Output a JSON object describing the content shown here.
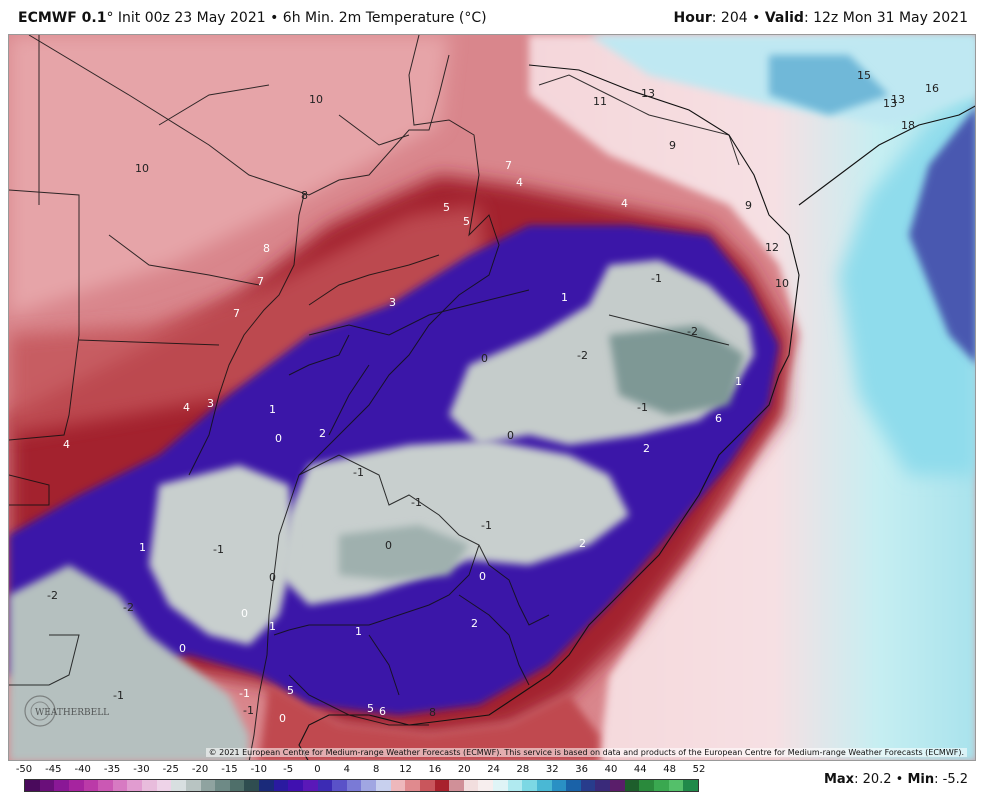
{
  "header": {
    "model": "ECMWF 0.1",
    "init_text": "° Init 00z 23 May 2021 • 6h Min. 2m Temperature (°C)",
    "hour_label": "Hour",
    "hour_value": ": 204 • ",
    "valid_label": "Valid",
    "valid_value": ": 12z Mon 31 May 2021"
  },
  "credit": "© 2021 European Centre for Medium-range Weather Forecasts (ECMWF). This service is based on data and products of the European Centre for Medium-range Weather Forecasts (ECMWF).",
  "logo_text": "WEATHERBELL",
  "stats": {
    "max_label": "Max",
    "max_value": ": 20.2 • ",
    "min_label": "Min",
    "min_value": ": -5.2"
  },
  "legend": {
    "ticks": [
      "-50",
      "-45",
      "-40",
      "-35",
      "-30",
      "-25",
      "-20",
      "-15",
      "-10",
      "-5",
      "0",
      "4",
      "8",
      "12",
      "16",
      "20",
      "24",
      "28",
      "32",
      "36",
      "40",
      "44",
      "48",
      "52"
    ],
    "colors": [
      "#4a0a5c",
      "#6a0f7a",
      "#8a1896",
      "#a6249f",
      "#bb3aa8",
      "#cb58b4",
      "#d77ac2",
      "#e19cd0",
      "#e8bcdc",
      "#eed3e8",
      "#d8dfe0",
      "#b8c4c2",
      "#8fa3a0",
      "#6e8a86",
      "#4f6f6a",
      "#2f4d50",
      "#1a2a7a",
      "#2a1aa0",
      "#4010b0",
      "#5a18b8",
      "#3c2bb4",
      "#5a52c8",
      "#7a7ad6",
      "#a0a6e2",
      "#c8d0ee",
      "#eeb8bc",
      "#e08a8e",
      "#c9565c",
      "#a8222c",
      "#d09098",
      "#f2dede",
      "#f7eeee",
      "#dff4f6",
      "#b0eaf0",
      "#7cd8e4",
      "#4ab8d4",
      "#2a90c4",
      "#1a62a8",
      "#283c8c",
      "#3a2a7a",
      "#5a1e6a",
      "#1e5e2c",
      "#2a8a3c",
      "#3aa850",
      "#54c06a",
      "#208a4a"
    ]
  },
  "map_labels": [
    {
      "text": "10",
      "color": "#222"
    },
    {
      "text": "10",
      "color": "#222"
    },
    {
      "text": "11",
      "color": "#222"
    },
    {
      "text": "13",
      "color": "#222"
    },
    {
      "text": "15",
      "color": "#222"
    },
    {
      "text": "16",
      "color": "#222"
    },
    {
      "text": "13",
      "color": "#222"
    },
    {
      "text": "13",
      "color": "#222"
    },
    {
      "text": "18",
      "color": "#222"
    },
    {
      "text": "9",
      "color": "#222"
    },
    {
      "text": "9",
      "color": "#222"
    },
    {
      "text": "8",
      "color": "#222"
    },
    {
      "text": "8",
      "color": "#fff"
    },
    {
      "text": "7",
      "color": "#fff"
    },
    {
      "text": "7",
      "color": "#fff"
    },
    {
      "text": "7",
      "color": "#fff"
    },
    {
      "text": "5",
      "color": "#fff"
    },
    {
      "text": "5",
      "color": "#fff"
    },
    {
      "text": "4",
      "color": "#fff"
    },
    {
      "text": "4",
      "color": "#fff"
    },
    {
      "text": "4",
      "color": "#fff"
    },
    {
      "text": "4",
      "color": "#fff"
    },
    {
      "text": "3",
      "color": "#fff"
    },
    {
      "text": "3",
      "color": "#fff"
    },
    {
      "text": "12",
      "color": "#222"
    },
    {
      "text": "10",
      "color": "#222"
    },
    {
      "text": "1",
      "color": "#fff"
    },
    {
      "text": "-1",
      "color": "#222"
    },
    {
      "text": "-2",
      "color": "#222"
    },
    {
      "text": "-2",
      "color": "#222"
    },
    {
      "text": "0",
      "color": "#222"
    },
    {
      "text": "1",
      "color": "#fff"
    },
    {
      "text": "6",
      "color": "#fff"
    },
    {
      "text": "-1",
      "color": "#222"
    },
    {
      "text": "0",
      "color": "#222"
    },
    {
      "text": "1",
      "color": "#fff"
    },
    {
      "text": "0",
      "color": "#fff"
    },
    {
      "text": "2",
      "color": "#fff"
    },
    {
      "text": "2",
      "color": "#fff"
    },
    {
      "text": "-1",
      "color": "#222"
    },
    {
      "text": "-1",
      "color": "#222"
    },
    {
      "text": "0",
      "color": "#222"
    },
    {
      "text": "-1",
      "color": "#222"
    },
    {
      "text": "2",
      "color": "#fff"
    },
    {
      "text": "1",
      "color": "#fff"
    },
    {
      "text": "-1",
      "color": "#222"
    },
    {
      "text": "0",
      "color": "#fff"
    },
    {
      "text": "0",
      "color": "#222"
    },
    {
      "text": "-2",
      "color": "#222"
    },
    {
      "text": "-2",
      "color": "#222"
    },
    {
      "text": "0",
      "color": "#fff"
    },
    {
      "text": "1",
      "color": "#fff"
    },
    {
      "text": "1",
      "color": "#fff"
    },
    {
      "text": "2",
      "color": "#fff"
    },
    {
      "text": "0",
      "color": "#fff"
    },
    {
      "text": "-1",
      "color": "#222"
    },
    {
      "text": "-1",
      "color": "#fff"
    },
    {
      "text": "-1",
      "color": "#222"
    },
    {
      "text": "5",
      "color": "#fff"
    },
    {
      "text": "0",
      "color": "#fff"
    },
    {
      "text": "5",
      "color": "#fff"
    },
    {
      "text": "6",
      "color": "#fff"
    },
    {
      "text": "8",
      "color": "#222"
    }
  ]
}
